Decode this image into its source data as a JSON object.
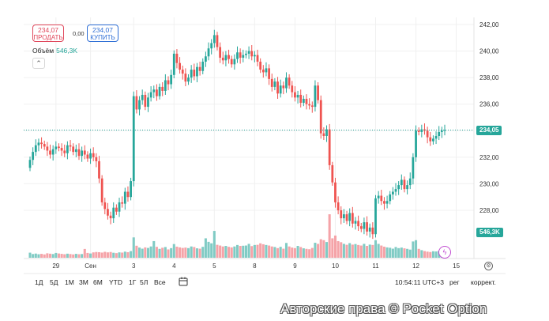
{
  "trade_panel": {
    "sell_price": "234,07",
    "sell_label": "ПРОДАТЬ",
    "spread": "0,00",
    "buy_price": "234,07",
    "buy_label": "КУПИТЬ"
  },
  "volume_legend": {
    "label": "Объём",
    "value": "546,3K"
  },
  "price_badge": "234,05",
  "volume_badge": "546,3K",
  "time_ranges": [
    "1Д",
    "5Д",
    "1М",
    "3М",
    "6М",
    "YTD",
    "1Г",
    "5Л",
    "Все"
  ],
  "clock": "10:54:11 UTC+3",
  "scale_log": "рег",
  "scale_auto": "коррект.",
  "watermark": "Авторские права © Pocket Option",
  "colors": {
    "up": "#26a69a",
    "down": "#ef5350",
    "up_volume": "#80cbc4",
    "down_volume": "#f5a3a8",
    "last_price_line": "#26a69a"
  },
  "chart_data": {
    "type": "candlestick",
    "y_ticks": [
      "242,00",
      "240,00",
      "238,00",
      "236,00",
      "234,00",
      "232,00",
      "230,00",
      "228,00"
    ],
    "y_tick_values": [
      242,
      240,
      238,
      236,
      234,
      232,
      230,
      228
    ],
    "ylim": [
      225.6,
      242.4
    ],
    "x_ticks": [
      {
        "label": "29",
        "index": 9
      },
      {
        "label": "Сен",
        "index": 21
      },
      {
        "label": "3",
        "index": 36
      },
      {
        "label": "4",
        "index": 50
      },
      {
        "label": "5",
        "index": 64
      },
      {
        "label": "8",
        "index": 78
      },
      {
        "label": "9",
        "index": 92
      },
      {
        "label": "10",
        "index": 106
      },
      {
        "label": "11",
        "index": 120
      },
      {
        "label": "12",
        "index": 134
      },
      {
        "label": "15",
        "index": 148
      }
    ],
    "last_price": 234.05,
    "closes": [
      231.8,
      232.4,
      232.9,
      233.1,
      233.0,
      232.8,
      232.5,
      232.2,
      232.6,
      232.8,
      232.7,
      232.5,
      232.3,
      232.9,
      232.8,
      232.4,
      232.6,
      232.1,
      232.5,
      232.2,
      231.9,
      232.3,
      232.0,
      231.7,
      230.4,
      228.6,
      228.1,
      227.6,
      227.4,
      228.2,
      227.9,
      228.6,
      228.5,
      229.4,
      229.0,
      230.2,
      236.6,
      235.6,
      236.3,
      236.7,
      235.8,
      236.5,
      236.9,
      237.1,
      236.6,
      237.3,
      237.0,
      237.8,
      237.5,
      238.2,
      239.8,
      239.1,
      238.6,
      238.3,
      237.7,
      238.0,
      238.6,
      238.1,
      238.8,
      238.5,
      239.2,
      239.6,
      240.2,
      240.6,
      241.2,
      240.3,
      239.5,
      239.3,
      239.7,
      239.4,
      239.0,
      239.4,
      239.9,
      239.5,
      239.7,
      239.8,
      240.0,
      239.6,
      239.7,
      239.2,
      238.6,
      238.4,
      238.7,
      237.9,
      237.3,
      237.7,
      236.8,
      237.4,
      237.2,
      238.0,
      237.4,
      236.9,
      236.5,
      236.7,
      236.1,
      236.4,
      236.0,
      235.9,
      235.8,
      237.4,
      236.3,
      233.8,
      233.6,
      234.1,
      231.4,
      230.1,
      228.6,
      228.0,
      227.4,
      227.7,
      227.2,
      227.8,
      227.0,
      227.2,
      226.8,
      226.6,
      227.1,
      226.4,
      226.7,
      226.2,
      228.9,
      229.1,
      228.7,
      228.5,
      228.7,
      229.2,
      229.4,
      229.6,
      229.9,
      230.3,
      229.6,
      229.9,
      230.4,
      232.0,
      234.0,
      233.9,
      234.1,
      234.0,
      233.5,
      233.2,
      233.4,
      233.6,
      233.9,
      234.0,
      234.05
    ],
    "volumes": [
      55,
      40,
      45,
      38,
      42,
      36,
      48,
      44,
      40,
      52,
      46,
      42,
      38,
      44,
      40,
      36,
      42,
      38,
      40,
      95,
      52,
      46,
      58,
      62,
      60,
      56,
      64,
      58,
      62,
      54,
      50,
      58,
      56,
      66,
      60,
      72,
      220,
      130,
      110,
      98,
      112,
      106,
      122,
      180,
      118,
      96,
      108,
      116,
      90,
      104,
      148,
      120,
      112,
      106,
      110,
      104,
      122,
      116,
      102,
      98,
      118,
      210,
      172,
      156,
      290,
      140,
      132,
      122,
      128,
      118,
      112,
      122,
      138,
      128,
      130,
      132,
      150,
      126,
      138,
      140,
      156,
      146,
      138,
      132,
      122,
      116,
      104,
      118,
      98,
      160,
      122,
      110,
      104,
      128,
      116,
      102,
      96,
      92,
      106,
      162,
      150,
      200,
      190,
      170,
      470,
      210,
      240,
      180,
      168,
      150,
      140,
      158,
      142,
      148,
      138,
      132,
      150,
      128,
      142,
      138,
      190,
      150,
      132,
      120,
      112,
      108,
      98,
      116,
      104,
      110,
      102,
      96,
      88,
      176,
      190,
      96,
      82,
      72,
      66,
      62,
      70,
      68,
      74,
      82,
      100
    ],
    "volume_max": 470
  }
}
